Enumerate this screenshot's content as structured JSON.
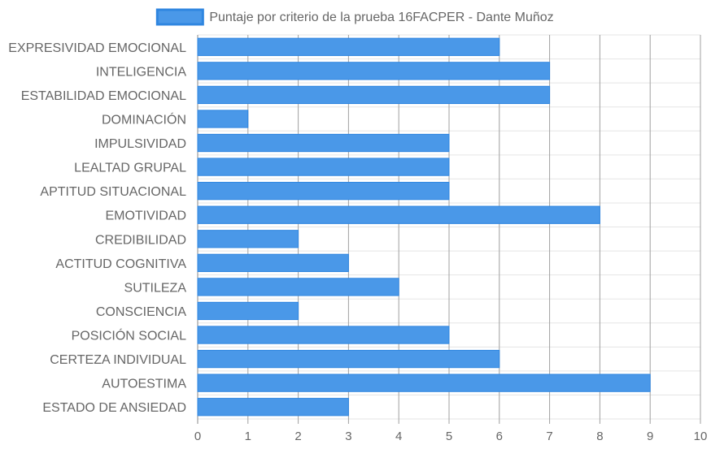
{
  "chart_data": {
    "type": "bar",
    "orientation": "horizontal",
    "categories": [
      "EXPRESIVIDAD EMOCIONAL",
      "INTELIGENCIA",
      "ESTABILIDAD EMOCIONAL",
      "DOMINACIÓN",
      "IMPULSIVIDAD",
      "LEALTAD GRUPAL",
      "APTITUD SITUACIONAL",
      "EMOTIVIDAD",
      "CREDIBILIDAD",
      "ACTITUD COGNITIVA",
      "SUTILEZA",
      "CONSCIENCIA",
      "POSICIÓN SOCIAL",
      "CERTEZA INDIVIDUAL",
      "AUTOESTIMA",
      "ESTADO DE ANSIEDAD"
    ],
    "series": [
      {
        "name": "Puntaje por criterio de la prueba 16FACPER - Dante Muñoz",
        "values": [
          6,
          7,
          7,
          1,
          5,
          5,
          5,
          8,
          2,
          3,
          4,
          2,
          5,
          6,
          9,
          3
        ]
      }
    ],
    "xlim": [
      0,
      10
    ],
    "xticks": [
      "0",
      "1",
      "2",
      "3",
      "4",
      "5",
      "6",
      "7",
      "8",
      "9",
      "10"
    ],
    "grid": true,
    "legend_position": "top-center",
    "colors": {
      "bar_fill": "#4a98e8",
      "bar_border": "#2f86e0",
      "grid": "#e5e5e5",
      "grid_vertical": "#a0a0a0"
    }
  }
}
